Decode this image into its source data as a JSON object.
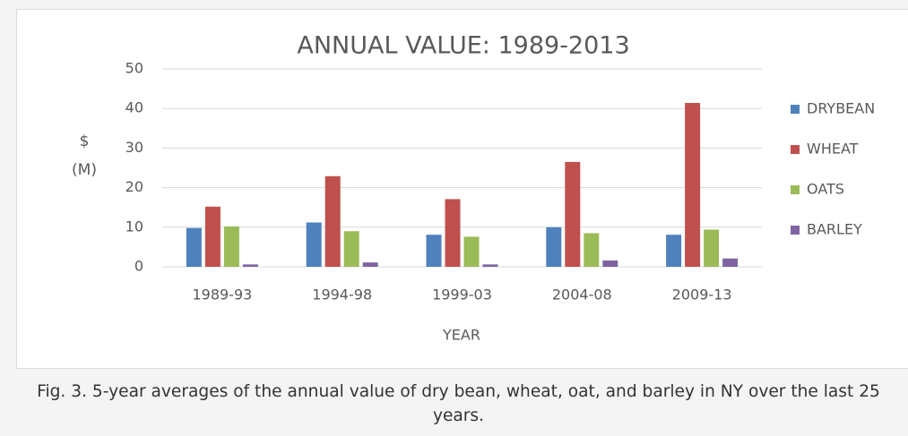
{
  "chart_data": {
    "type": "bar",
    "title": "ANNUAL VALUE: 1989-2013",
    "y_label_lines": [
      "$",
      "(M)"
    ],
    "x_label": "YEAR",
    "categories": [
      "1989-93",
      "1994-98",
      "1999-03",
      "2004-08",
      "2009-13"
    ],
    "series": [
      {
        "name": "DRYBEAN",
        "color": "#4f81bd",
        "values": [
          9.8,
          11.2,
          8.1,
          10,
          8.1
        ]
      },
      {
        "name": "WHEAT",
        "color": "#c0504d",
        "values": [
          15.2,
          22.9,
          17.1,
          26.5,
          41.4
        ]
      },
      {
        "name": "OATS",
        "color": "#9bbb59",
        "values": [
          10.2,
          9,
          7.6,
          8.5,
          9.4
        ]
      },
      {
        "name": "BARLEY",
        "color": "#8064a2",
        "values": [
          0.6,
          1.1,
          0.6,
          1.6,
          2.1
        ]
      }
    ],
    "ylim": [
      0,
      50
    ],
    "yticks": [
      0,
      10,
      20,
      30,
      40,
      50
    ],
    "grid": true,
    "legend": "right"
  },
  "caption": "Fig. 3. 5-year averages of the annual value of dry bean, wheat, oat, and barley in NY over the last 25 years."
}
